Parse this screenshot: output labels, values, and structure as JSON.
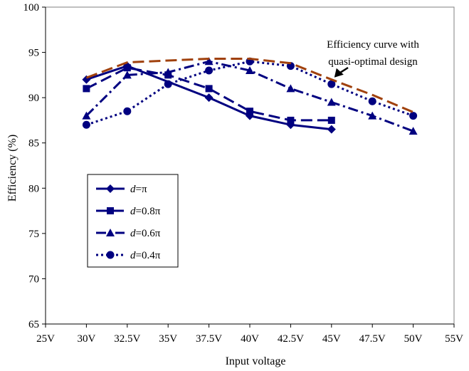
{
  "chart_data": {
    "type": "line",
    "title": "",
    "xlabel": "Input voltage",
    "ylabel": "Efficiency (%)",
    "x_tick_labels": [
      "25V",
      "30V",
      "32.5V",
      "35V",
      "37.5V",
      "40V",
      "42.5V",
      "45V",
      "47.5V",
      "50V",
      "55V"
    ],
    "x": [
      25,
      30,
      32.5,
      35,
      37.5,
      40,
      42.5,
      45,
      47.5,
      50,
      55
    ],
    "y_ticks": [
      "100",
      "95",
      "90",
      "85",
      "80",
      "75",
      "70",
      "65"
    ],
    "ylim": [
      65,
      100
    ],
    "grid": false,
    "legend_position": "lower-left",
    "annotation": [
      "Efficiency curve with",
      "quasi-optimal design"
    ],
    "series": [
      {
        "name": "d=π",
        "legend_var": "d",
        "legend_value": "=π",
        "marker": "diamond",
        "dash": "solid",
        "color": "#000080",
        "points": [
          [
            30,
            92
          ],
          [
            32.5,
            93.5
          ],
          [
            37.5,
            90
          ],
          [
            40,
            88
          ],
          [
            42.5,
            87
          ],
          [
            45,
            86.5
          ]
        ]
      },
      {
        "name": "d=0.8π",
        "legend_var": "d",
        "legend_value": "=0.8π",
        "marker": "square",
        "dash": "long-dash",
        "color": "#000080",
        "points": [
          [
            30,
            91
          ],
          [
            32.5,
            93.3
          ],
          [
            35,
            92.5
          ],
          [
            37.5,
            91
          ],
          [
            40,
            88.5
          ],
          [
            42.5,
            87.5
          ],
          [
            45,
            87.5
          ]
        ]
      },
      {
        "name": "d=0.6π",
        "legend_var": "d",
        "legend_value": "=0.6π",
        "marker": "triangle",
        "dash": "dash-dot",
        "color": "#000080",
        "points": [
          [
            30,
            88
          ],
          [
            32.5,
            92.5
          ],
          [
            35,
            92.8
          ],
          [
            37.5,
            94
          ],
          [
            40,
            93
          ],
          [
            42.5,
            91
          ],
          [
            45,
            89.5
          ],
          [
            47.5,
            88
          ],
          [
            50,
            86.3
          ]
        ]
      },
      {
        "name": "d=0.4π",
        "legend_var": "d",
        "legend_value": "=0.4π",
        "marker": "circle",
        "dash": "dotted",
        "color": "#000080",
        "points": [
          [
            30,
            87
          ],
          [
            32.5,
            88.5
          ],
          [
            35,
            91.5
          ],
          [
            37.5,
            93
          ],
          [
            40,
            94
          ],
          [
            42.5,
            93.5
          ],
          [
            45,
            91.5
          ],
          [
            47.5,
            89.6
          ],
          [
            50,
            88
          ]
        ]
      },
      {
        "name": "quasi-optimal",
        "marker": "none",
        "dash": "long-dash",
        "color": "#A0410D",
        "points": [
          [
            30,
            92.2
          ],
          [
            32.5,
            93.9
          ],
          [
            35,
            94.1
          ],
          [
            37.5,
            94.3
          ],
          [
            40,
            94.3
          ],
          [
            42.5,
            93.8
          ],
          [
            45,
            92
          ],
          [
            47.5,
            90.3
          ],
          [
            50,
            88.4
          ]
        ]
      }
    ]
  }
}
